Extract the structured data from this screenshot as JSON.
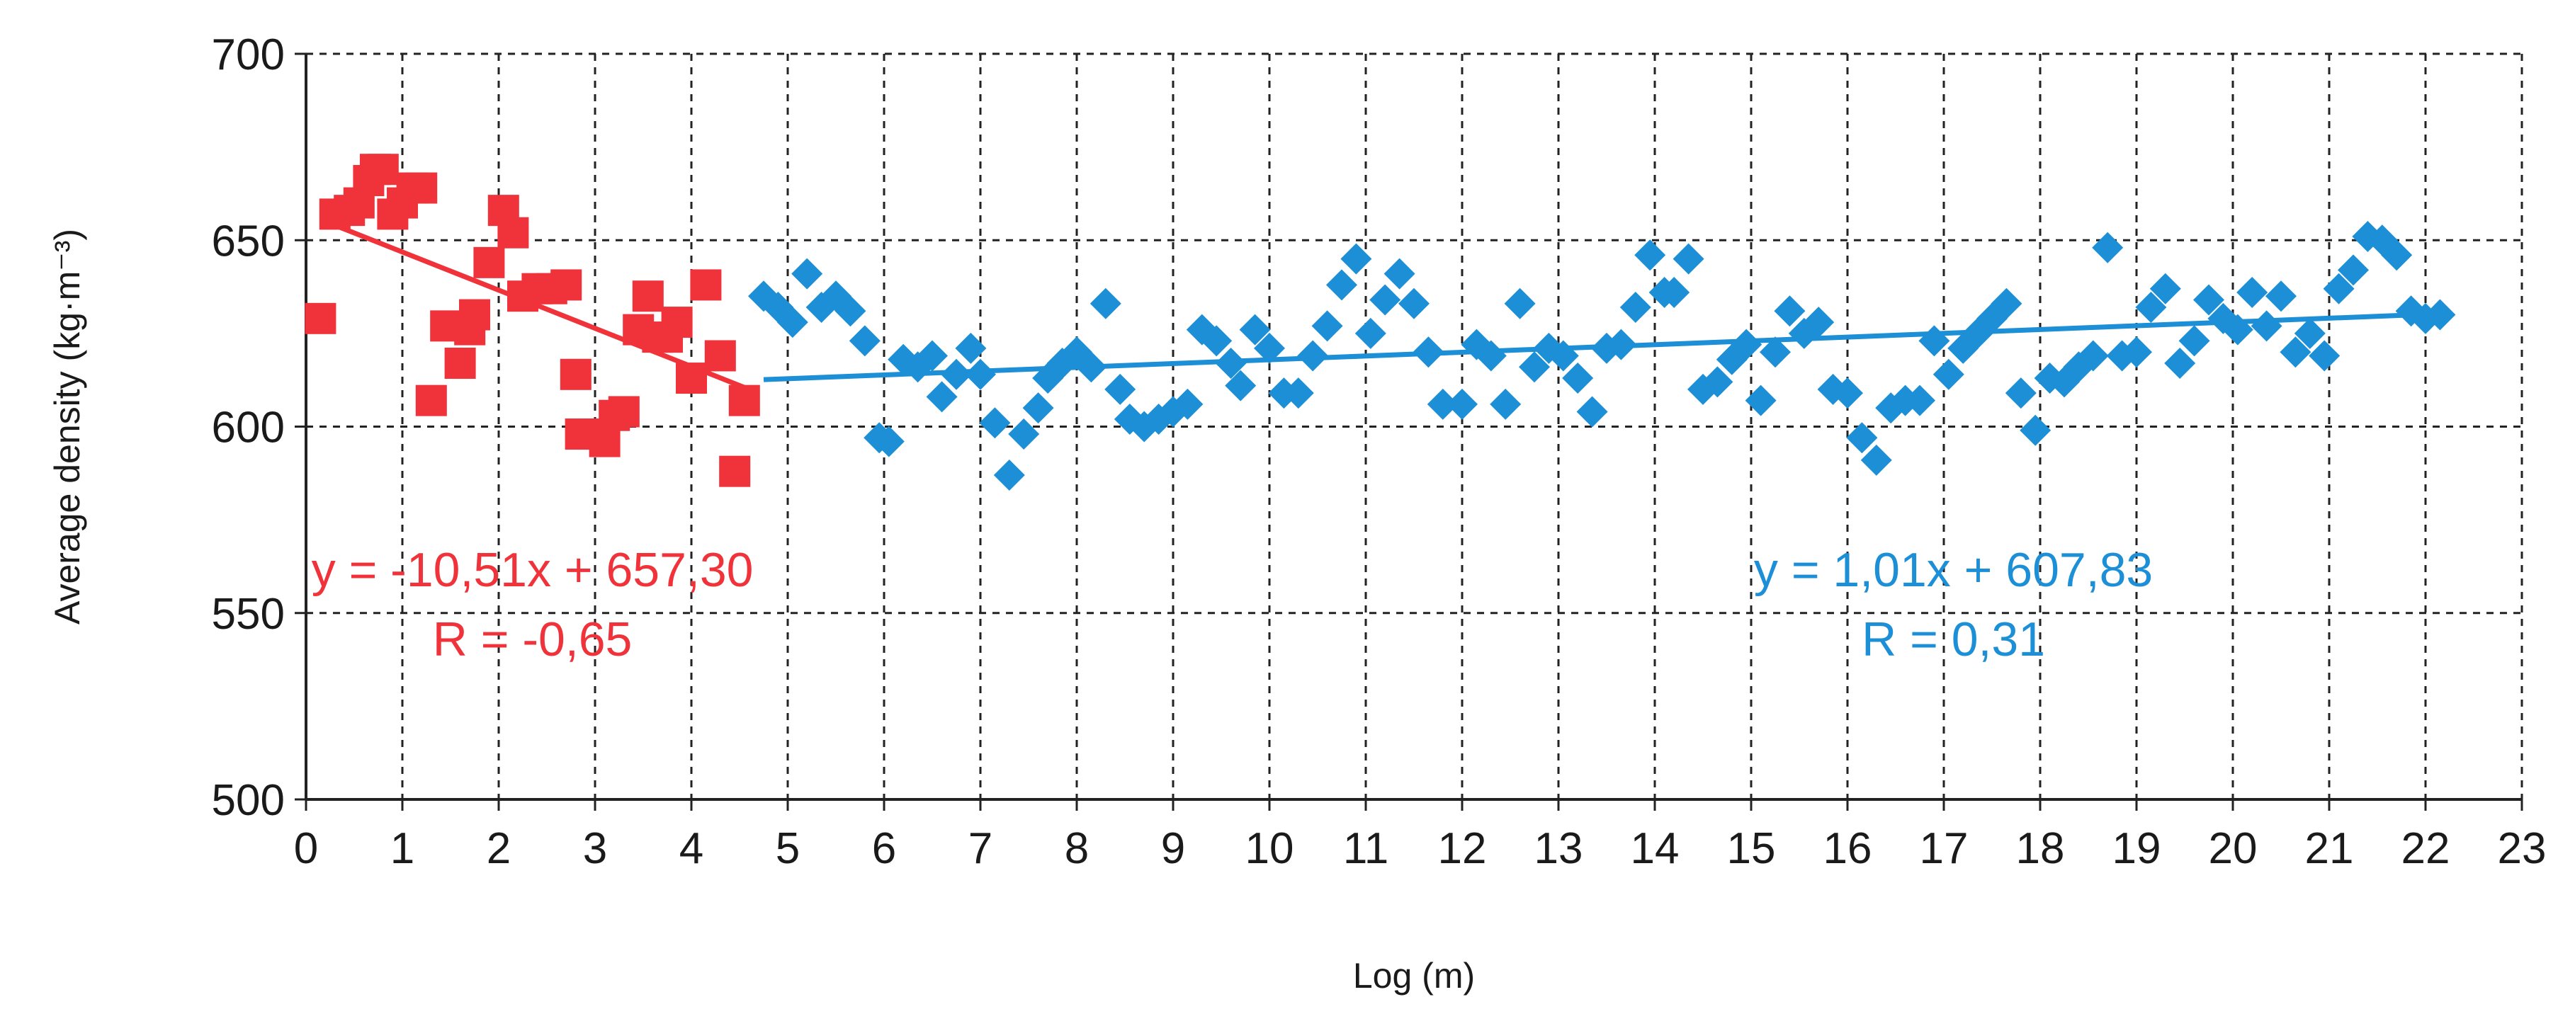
{
  "chart_data": {
    "type": "scatter",
    "title": "",
    "xlabel": "Log (m)",
    "ylabel": "Average density (kg·m⁻³)",
    "xlim": [
      0,
      23
    ],
    "ylim": [
      500,
      700
    ],
    "xticks": [
      "0",
      "1",
      "2",
      "3",
      "4",
      "5",
      "6",
      "7",
      "8",
      "9",
      "10",
      "11",
      "12",
      "13",
      "14",
      "15",
      "16",
      "17",
      "18",
      "19",
      "20",
      "21",
      "22",
      "23"
    ],
    "yticks": [
      "500",
      "550",
      "600",
      "650",
      "700"
    ],
    "grid": true,
    "legend": "none",
    "series": [
      {
        "marker": "square",
        "color": "#f0333a",
        "x": [
          0.15,
          0.3,
          0.45,
          0.55,
          0.65,
          0.72,
          0.8,
          0.9,
          1.0,
          1.1,
          1.2,
          1.3,
          1.45,
          1.6,
          1.7,
          1.75,
          1.9,
          2.05,
          2.15,
          2.25,
          2.4,
          2.55,
          2.7,
          2.8,
          2.85,
          3.0,
          3.1,
          3.2,
          3.3,
          3.45,
          3.55,
          3.65,
          3.75,
          3.85,
          4.0,
          4.15,
          4.3,
          4.45,
          4.55
        ],
        "y": [
          629,
          657,
          658,
          660,
          666,
          669,
          669,
          657,
          660,
          664,
          664,
          607,
          627,
          617,
          626,
          630,
          644,
          658,
          652,
          635,
          637,
          637,
          638,
          614,
          598,
          598,
          596,
          603,
          604,
          626,
          635,
          624,
          624,
          628,
          613,
          638,
          619,
          588,
          607
        ],
        "trendline": {
          "x": [
            0.3,
            4.6
          ],
          "y": [
            654,
            610
          ]
        }
      },
      {
        "marker": "diamond",
        "color": "#1c8fd6",
        "x": [
          4.75,
          4.9,
          5.05,
          5.2,
          5.35,
          5.5,
          5.65,
          5.8,
          5.95,
          6.05,
          6.2,
          6.35,
          6.5,
          6.6,
          6.75,
          6.9,
          7.0,
          7.15,
          7.3,
          7.45,
          7.6,
          7.7,
          7.85,
          8.0,
          8.15,
          8.3,
          8.45,
          8.55,
          8.7,
          8.85,
          9.0,
          9.15,
          9.3,
          9.45,
          9.6,
          9.7,
          9.85,
          10.0,
          10.15,
          10.3,
          10.45,
          10.6,
          10.75,
          10.9,
          11.05,
          11.2,
          11.35,
          11.5,
          11.65,
          11.8,
          12.0,
          12.15,
          12.3,
          12.45,
          12.6,
          12.75,
          12.9,
          13.05,
          13.2,
          13.35,
          13.5,
          13.65,
          13.8,
          13.95,
          14.1,
          14.2,
          14.35,
          14.5,
          14.65,
          14.8,
          14.95,
          15.1,
          15.25,
          15.4,
          15.55,
          15.7,
          15.85,
          16.0,
          16.15,
          16.3,
          16.45,
          16.6,
          16.75,
          16.9,
          17.05,
          17.2,
          17.35,
          17.5,
          17.65,
          17.8,
          17.95,
          18.1,
          18.25,
          18.4,
          18.55,
          18.7,
          18.85,
          19.0,
          19.15,
          19.3,
          19.45,
          19.6,
          19.75,
          19.9,
          20.05,
          20.2,
          20.35,
          20.5,
          20.65,
          20.8,
          20.95,
          21.1,
          21.25,
          21.4,
          21.55,
          21.7,
          21.85,
          22.0,
          22.15
        ],
        "y": [
          635,
          632,
          628,
          641,
          632,
          635,
          631,
          623,
          597,
          596,
          618,
          616,
          619,
          608,
          614,
          621,
          614,
          601,
          587,
          598,
          605,
          613,
          617,
          620,
          616,
          633,
          610,
          602,
          600,
          602,
          604,
          606,
          626,
          623,
          617,
          611,
          626,
          621,
          609,
          609,
          619,
          627,
          638,
          645,
          625,
          634,
          641,
          633,
          620,
          606,
          606,
          622,
          619,
          606,
          633,
          616,
          621,
          619,
          613,
          604,
          621,
          622,
          632,
          646,
          636,
          636,
          645,
          610,
          612,
          618,
          622,
          607,
          620,
          631,
          625,
          628,
          610,
          609,
          597,
          591,
          605,
          607,
          607,
          623,
          614,
          621,
          625,
          629,
          633,
          609,
          599,
          613,
          612,
          616,
          619,
          648,
          619,
          620,
          632,
          637,
          617,
          623,
          634,
          629,
          626,
          636,
          627,
          635,
          620,
          625,
          619,
          637,
          642,
          651,
          650,
          646,
          631,
          629,
          630
        ],
        "trendline": {
          "x": [
            4.75,
            22.2
          ],
          "y": [
            612.6,
            630.3
          ]
        }
      }
    ],
    "annotations": [
      {
        "line1": "y = -10,51x + 657,30",
        "line2": "R = -0,65",
        "color": "#f0333a",
        "x": 2.35,
        "y": 550
      },
      {
        "line1": "y = 1,01x + 607,83",
        "line2": "R = 0,31",
        "color": "#1c8fd6",
        "x": 17.1,
        "y": 550
      }
    ]
  }
}
